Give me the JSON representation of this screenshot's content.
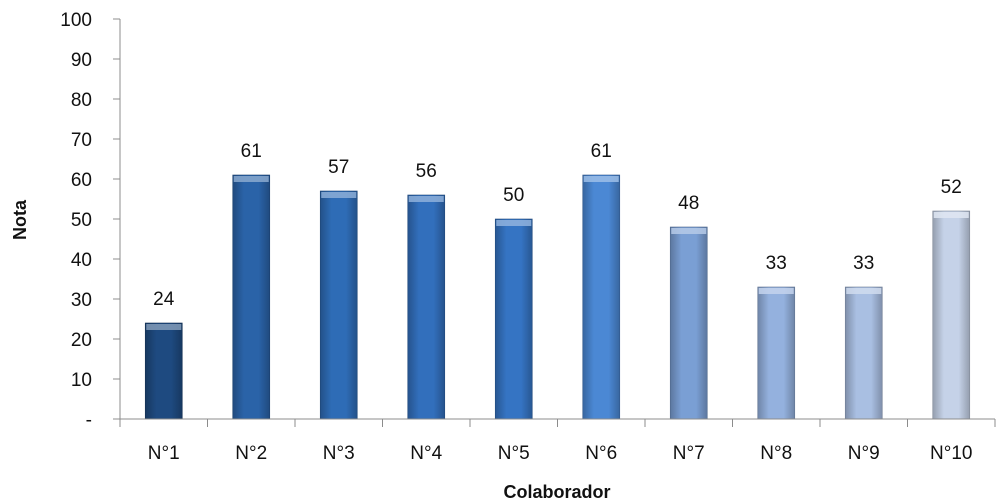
{
  "chart_data": {
    "type": "bar",
    "title": "",
    "xlabel": "Colaborador",
    "ylabel": "Nota",
    "categories": [
      "N°1",
      "N°2",
      "N°3",
      "N°4",
      "N°5",
      "N°6",
      "N°7",
      "N°8",
      "N°9",
      "N°10"
    ],
    "values": [
      24,
      61,
      57,
      56,
      50,
      61,
      48,
      33,
      33,
      52
    ],
    "data_labels": [
      "24",
      "61",
      "57",
      "56",
      "50",
      "61",
      "48",
      "33",
      "33",
      "52"
    ],
    "ylim": [
      0,
      100
    ],
    "yticks": [
      0,
      10,
      20,
      30,
      40,
      50,
      60,
      70,
      80,
      90,
      100
    ],
    "ytick_labels": [
      "-",
      "10",
      "20",
      "30",
      "40",
      "50",
      "60",
      "70",
      "80",
      "90",
      "100"
    ],
    "grid": false,
    "legend": "none",
    "bar_colors": [
      "#1e4a80",
      "#2a63a8",
      "#2e6cb6",
      "#326fbc",
      "#3574c3",
      "#4b88d4",
      "#7a9fd4",
      "#94b1de",
      "#a9bfe2",
      "#c5d2e8"
    ]
  }
}
